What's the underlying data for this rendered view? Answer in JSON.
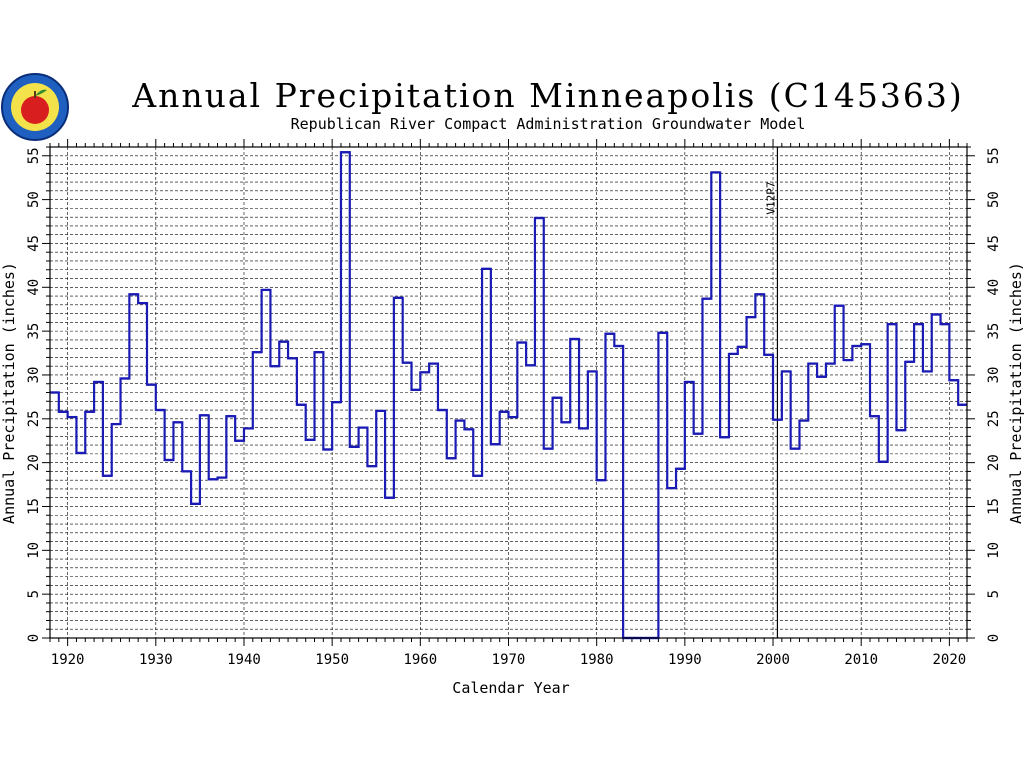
{
  "chart_data": {
    "type": "line",
    "step": true,
    "title": "Annual Precipitation Minneapolis (C145363)",
    "subtitle": "Republican River Compact Administration Groundwater Model",
    "xlabel": "Calendar Year",
    "ylabel": "Annual Precipitation (inches)",
    "ylabel_right": "Annual Precipitation (inches)",
    "xlim": [
      1918,
      2022
    ],
    "ylim": [
      0,
      56
    ],
    "x_ticks": [
      1920,
      1930,
      1940,
      1950,
      1960,
      1970,
      1980,
      1990,
      2000,
      2010,
      2020
    ],
    "y_ticks": [
      0,
      5,
      10,
      15,
      20,
      25,
      30,
      35,
      40,
      45,
      50,
      55
    ],
    "grid": true,
    "line_color": "#1a1ab4",
    "annotations": [
      {
        "x": 2000.5,
        "label": "V12P7"
      }
    ],
    "series": [
      {
        "x": [
          1918,
          1919,
          1920,
          1921,
          1922,
          1923,
          1924,
          1925,
          1926,
          1927,
          1928,
          1929,
          1930,
          1931,
          1932,
          1933,
          1934,
          1935,
          1936,
          1937,
          1938,
          1939,
          1940,
          1941,
          1942,
          1943,
          1944,
          1945,
          1946,
          1947,
          1948,
          1949,
          1950,
          1951,
          1952,
          1953,
          1954,
          1955,
          1956,
          1957,
          1958,
          1959,
          1960,
          1961,
          1962,
          1963,
          1964,
          1965,
          1966,
          1967,
          1968,
          1969,
          1970,
          1971,
          1972,
          1973,
          1974,
          1975,
          1976,
          1977,
          1978,
          1979,
          1980,
          1981,
          1982,
          1983,
          1984,
          1985,
          1986,
          1987,
          1988,
          1989,
          1990,
          1991,
          1992,
          1993,
          1994,
          1995,
          1996,
          1997,
          1998,
          1999,
          2000,
          2001,
          2002,
          2003,
          2004,
          2005,
          2006,
          2007,
          2008,
          2009,
          2010,
          2011,
          2012,
          2013,
          2014,
          2015,
          2016,
          2017,
          2018,
          2019,
          2020,
          2021
        ],
        "values": [
          28.0,
          25.8,
          25.2,
          21.1,
          25.8,
          29.2,
          18.5,
          24.4,
          29.6,
          39.2,
          38.2,
          28.9,
          26.0,
          20.3,
          24.6,
          19.0,
          15.3,
          25.4,
          18.1,
          18.3,
          25.3,
          22.5,
          23.9,
          32.6,
          39.7,
          31.0,
          33.8,
          31.9,
          26.6,
          22.6,
          32.6,
          21.5,
          26.9,
          55.4,
          21.8,
          24.0,
          19.6,
          25.9,
          16.0,
          38.8,
          31.4,
          28.3,
          30.3,
          31.3,
          26.0,
          20.5,
          24.8,
          23.8,
          18.5,
          42.1,
          22.1,
          25.8,
          25.2,
          33.7,
          31.1,
          47.9,
          21.6,
          27.4,
          24.6,
          34.1,
          23.9,
          30.4,
          18.0,
          34.7,
          33.3,
          0,
          0,
          0,
          0,
          34.8,
          17.1,
          19.3,
          29.2,
          23.3,
          38.7,
          53.1,
          22.9,
          32.4,
          33.2,
          36.6,
          39.2,
          32.3,
          24.9,
          30.4,
          21.6,
          24.8,
          31.3,
          29.8,
          31.3,
          37.9,
          31.7,
          33.3,
          33.5,
          25.3,
          20.1,
          35.8,
          23.7,
          31.5,
          35.8,
          30.4,
          36.9,
          35.8,
          29.4,
          26.6
        ]
      }
    ]
  }
}
